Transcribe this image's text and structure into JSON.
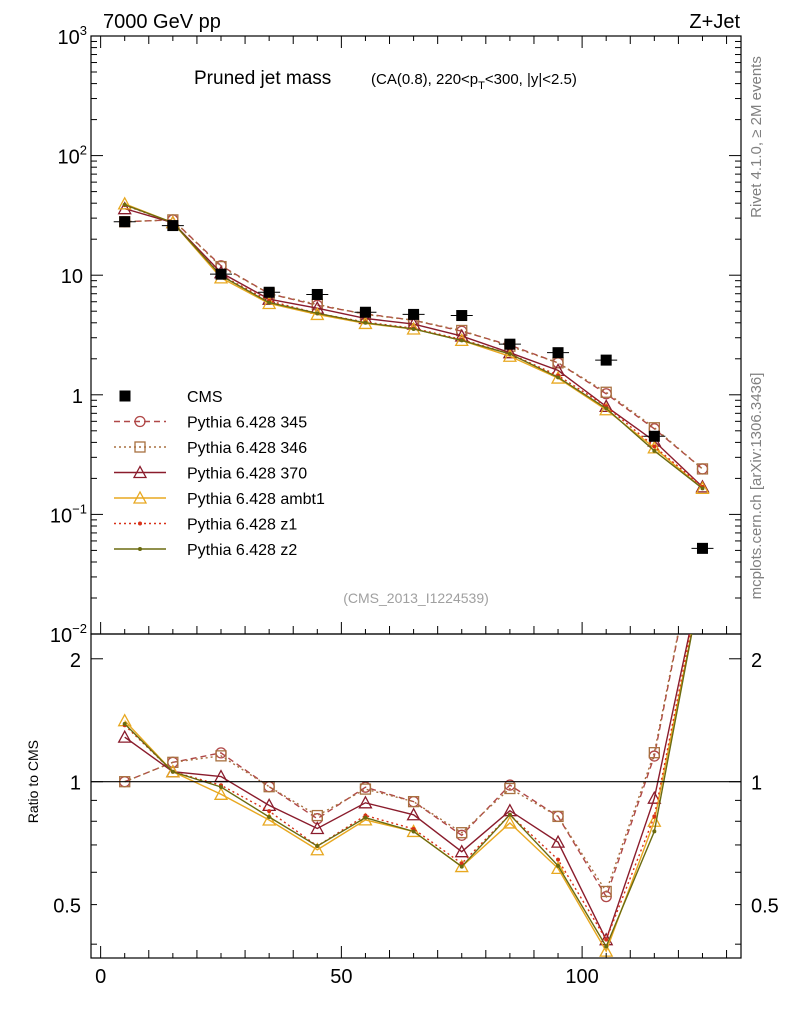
{
  "header": {
    "left": "7000 GeV pp",
    "right": "Z+Jet"
  },
  "side_labels": {
    "rivet": "Rivet 4.1.0, ≥ 2M events",
    "mcplots": "mcplots.cern.ch [arXiv:1306.3436]"
  },
  "chart_data": {
    "type": "scatter",
    "title": "Pruned jet mass",
    "subtitle_parts": {
      "pre": "(CA(0.8), 220<p",
      "sub": "T",
      "post": "<300, |y|<2.5)"
    },
    "analysis_tag": "(CMS_2013_I1224539)",
    "ylabel_ratio": "Ratio to CMS",
    "x": [
      5,
      15,
      25,
      35,
      45,
      55,
      65,
      75,
      85,
      95,
      105,
      115,
      125
    ],
    "xlim": [
      -2,
      133
    ],
    "xticks": [
      "0",
      "50",
      "100"
    ],
    "xtick_values": [
      0,
      50,
      100
    ],
    "ylim": [
      0.01,
      1000
    ],
    "yticks_main": [
      {
        "value": 1000,
        "base": "10",
        "exp": "3"
      },
      {
        "value": 100,
        "base": "10",
        "exp": "2"
      },
      {
        "value": 10,
        "base": "10",
        "exp": ""
      },
      {
        "value": 1,
        "base": "1",
        "exp": ""
      },
      {
        "value": 0.1,
        "base": "10",
        "exp": "−1"
      },
      {
        "value": 0.01,
        "base": "10",
        "exp": "−2"
      }
    ],
    "ratio_ylim": [
      0.37,
      2.3
    ],
    "ratio_yticks": [
      {
        "value": 2,
        "label": "2"
      },
      {
        "value": 1,
        "label": "1"
      },
      {
        "value": 0.5,
        "label": "0.5"
      }
    ],
    "data": {
      "name": "CMS",
      "color": "#000000",
      "values": [
        28,
        26,
        10.2,
        7.2,
        6.9,
        4.9,
        4.7,
        4.6,
        2.65,
        2.25,
        1.95,
        0.45,
        0.052
      ]
    },
    "series": [
      {
        "name": "Pythia 6.428 345",
        "color": "#b04848",
        "dash": "6,4",
        "marker": "circle",
        "values": [
          28,
          29,
          12,
          7.0,
          5.6,
          4.75,
          4.2,
          3.4,
          2.6,
          1.85,
          1.02,
          0.52,
          0.24
        ]
      },
      {
        "name": "Pythia 6.428 346",
        "color": "#a87040",
        "dash": "2,3",
        "marker": "square",
        "values": [
          28,
          29,
          11.8,
          7.0,
          5.7,
          4.7,
          4.2,
          3.45,
          2.55,
          1.85,
          1.05,
          0.53,
          0.24
        ]
      },
      {
        "name": "Pythia 6.428 370",
        "color": "#8a1c2c",
        "dash": "",
        "marker": "triangle",
        "values": [
          36,
          27.5,
          10.5,
          6.3,
          5.3,
          4.35,
          3.9,
          3.1,
          2.25,
          1.6,
          0.8,
          0.41,
          0.17
        ]
      },
      {
        "name": "Pythia 6.428 ambt1",
        "color": "#e8a820",
        "dash": "",
        "marker": "triangle",
        "values": [
          39.5,
          27.5,
          9.5,
          5.8,
          4.7,
          3.95,
          3.55,
          2.85,
          2.1,
          1.38,
          0.75,
          0.36,
          0.165
        ]
      },
      {
        "name": "Pythia 6.428 z1",
        "color": "#d83018",
        "dash": "2,3",
        "marker": "dot",
        "values": [
          38.5,
          27.5,
          10.0,
          6.1,
          4.8,
          4.05,
          3.6,
          2.9,
          2.2,
          1.45,
          0.8,
          0.37,
          0.17
        ]
      },
      {
        "name": "Pythia 6.428 z2",
        "color": "#6b6b10",
        "dash": "",
        "marker": "dot",
        "values": [
          38.8,
          27.5,
          9.9,
          5.9,
          4.8,
          4.0,
          3.55,
          2.85,
          2.2,
          1.4,
          0.77,
          0.34,
          0.165
        ]
      }
    ]
  }
}
